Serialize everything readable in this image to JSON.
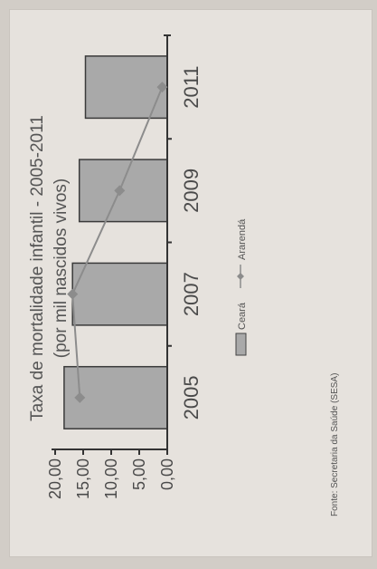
{
  "chart_data": {
    "type": "bar",
    "title": "Taxa de mortalidade infantil - 2005-2011",
    "subtitle": "(por mil nascidos vivos)",
    "categories": [
      "2005",
      "2007",
      "2009",
      "2011"
    ],
    "ylim": [
      0,
      20
    ],
    "yticks": [
      "0,00",
      "5,00",
      "10,00",
      "15,00",
      "20,00"
    ],
    "series": [
      {
        "name": "Ceará",
        "kind": "bar",
        "values": [
          18.4,
          16.9,
          15.7,
          14.6
        ],
        "color": "#a9a9a9"
      },
      {
        "name": "Ararendá",
        "kind": "line",
        "values": [
          15.6,
          16.9,
          8.5,
          0.9
        ],
        "color": "#8c8c8c"
      }
    ],
    "legend_position": "bottom",
    "grid": false,
    "source": "Fonte: Secretaria da Saúde (SESA)"
  }
}
